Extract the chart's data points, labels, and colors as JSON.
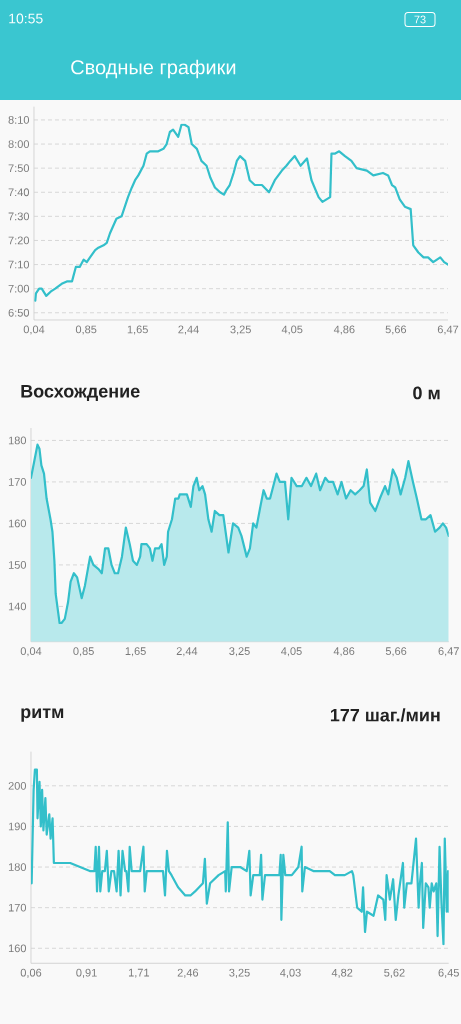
{
  "chart_data": [
    {
      "type": "line",
      "title": "Сводные графики",
      "annotations": [
        "10:55",
        "73"
      ],
      "color": "#33bfca",
      "grid": "y",
      "xlim": [
        0.04,
        6.47
      ],
      "xticks": [
        {
          "value": 0.04,
          "label": "0,04"
        },
        {
          "value": 0.85,
          "label": "0,85"
        },
        {
          "value": 1.65,
          "label": "1,65"
        },
        {
          "value": 2.44,
          "label": "2,44"
        },
        {
          "value": 3.25,
          "label": "3,25"
        },
        {
          "value": 4.05,
          "label": "4,05"
        },
        {
          "value": 4.86,
          "label": "4,86"
        },
        {
          "value": 5.66,
          "label": "5,66"
        },
        {
          "value": 6.47,
          "label": "6,47"
        }
      ],
      "ylim": [
        407,
        495.5
      ],
      "yticks": [
        {
          "value": 410,
          "label": "6:50"
        },
        {
          "value": 420,
          "label": "7:00"
        },
        {
          "value": 430,
          "label": "7:10"
        },
        {
          "value": 440,
          "label": "7:20"
        },
        {
          "value": 450,
          "label": "7:30"
        },
        {
          "value": 460,
          "label": "7:40"
        },
        {
          "value": 470,
          "label": "7:50"
        },
        {
          "value": 480,
          "label": "8:00"
        },
        {
          "value": 490,
          "label": "8:10"
        }
      ],
      "x": [
        0.06,
        0.07,
        0.12,
        0.16,
        0.23,
        0.31,
        0.37,
        0.42,
        0.47,
        0.55,
        0.63,
        0.65,
        0.69,
        0.75,
        0.81,
        0.86,
        0.91,
        0.99,
        1.04,
        1.12,
        1.17,
        1.22,
        1.27,
        1.32,
        1.4,
        1.45,
        1.5,
        1.56,
        1.61,
        1.66,
        1.74,
        1.79,
        1.84,
        1.89,
        1.97,
        2.05,
        2.1,
        2.15,
        2.2,
        2.28,
        2.33,
        2.38,
        2.44,
        2.49,
        2.57,
        2.64,
        2.72,
        2.78,
        2.85,
        2.93,
        2.99,
        3.03,
        3.08,
        3.14,
        3.19,
        3.24,
        3.32,
        3.39,
        3.47,
        3.58,
        3.69,
        3.78,
        3.89,
        3.96,
        4.02,
        4.09,
        4.18,
        4.28,
        4.35,
        4.46,
        4.52,
        4.64,
        4.66,
        4.71,
        4.78,
        4.87,
        4.97,
        5.05,
        5.21,
        5.31,
        5.46,
        5.54,
        5.6,
        5.65,
        5.72,
        5.8,
        5.89,
        5.93,
        6.01,
        6.09,
        6.16,
        6.24,
        6.35,
        6.41,
        6.47
      ],
      "values": [
        415,
        418,
        420,
        420,
        417,
        419,
        420,
        421,
        422,
        423,
        423,
        425,
        429,
        429,
        432,
        431,
        433,
        436,
        437,
        438,
        439,
        443,
        446,
        449,
        450,
        454,
        458,
        462,
        465,
        467,
        471,
        476,
        477,
        477,
        477,
        478,
        480,
        485,
        486,
        483,
        488,
        488,
        487,
        480,
        478,
        473,
        471,
        466,
        462,
        460,
        459,
        461,
        463,
        468,
        473,
        475,
        473,
        465,
        463,
        463,
        460,
        465,
        469,
        471,
        473,
        475,
        471,
        474,
        465,
        458,
        456,
        458,
        476,
        476,
        477,
        475,
        473,
        470,
        469,
        467,
        468,
        467,
        463,
        462,
        457,
        454,
        453,
        438,
        435,
        433,
        433,
        431,
        433,
        431,
        430
      ]
    },
    {
      "type": "area",
      "title": "Восхождение",
      "subtitle": "0 м",
      "color": "#33bfca",
      "grid": "y",
      "xlim": [
        0.04,
        6.47
      ],
      "xticks": [
        {
          "value": 0.04,
          "label": "0,04"
        },
        {
          "value": 0.85,
          "label": "0,85"
        },
        {
          "value": 1.65,
          "label": "1,65"
        },
        {
          "value": 2.44,
          "label": "2,44"
        },
        {
          "value": 3.25,
          "label": "3,25"
        },
        {
          "value": 4.05,
          "label": "4,05"
        },
        {
          "value": 4.86,
          "label": "4,86"
        },
        {
          "value": 5.66,
          "label": "5,66"
        },
        {
          "value": 6.47,
          "label": "6,47"
        }
      ],
      "ylim": [
        131.5,
        183
      ],
      "yticks": [
        140,
        150,
        160,
        170,
        180
      ],
      "x": [
        0.04,
        0.09,
        0.14,
        0.17,
        0.2,
        0.24,
        0.28,
        0.34,
        0.37,
        0.4,
        0.42,
        0.48,
        0.51,
        0.56,
        0.61,
        0.65,
        0.7,
        0.75,
        0.82,
        0.87,
        0.95,
        1.0,
        1.08,
        1.13,
        1.18,
        1.23,
        1.28,
        1.33,
        1.38,
        1.44,
        1.5,
        1.56,
        1.61,
        1.67,
        1.72,
        1.74,
        1.82,
        1.87,
        1.91,
        1.95,
        2.01,
        2.05,
        2.09,
        2.13,
        2.15,
        2.21,
        2.26,
        2.31,
        2.33,
        2.38,
        2.44,
        2.5,
        2.54,
        2.59,
        2.63,
        2.68,
        2.72,
        2.77,
        2.82,
        2.87,
        2.94,
        3.0,
        3.08,
        3.15,
        3.23,
        3.28,
        3.36,
        3.41,
        3.46,
        3.51,
        3.57,
        3.62,
        3.67,
        3.72,
        3.77,
        3.82,
        3.87,
        3.95,
        4.0,
        4.05,
        4.13,
        4.21,
        4.28,
        4.35,
        4.43,
        4.49,
        4.57,
        4.62,
        4.69,
        4.76,
        4.82,
        4.89,
        4.96,
        5.03,
        5.1,
        5.16,
        5.21,
        5.26,
        5.34,
        5.41,
        5.49,
        5.54,
        5.61,
        5.67,
        5.73,
        5.8,
        5.85,
        5.92,
        5.98,
        6.05,
        6.12,
        6.19,
        6.26,
        6.33,
        6.38,
        6.43,
        6.47
      ],
      "values": [
        171,
        175,
        179,
        178,
        174,
        172,
        166,
        161,
        158,
        151,
        143,
        136,
        136,
        137,
        141,
        146,
        148,
        147,
        142,
        145,
        152,
        150,
        149,
        148,
        154,
        154,
        150,
        148,
        148,
        152,
        159,
        155,
        151,
        150,
        152,
        155,
        155,
        154,
        151,
        154,
        154,
        155,
        150,
        152,
        158,
        161,
        166,
        166,
        167,
        167,
        167,
        164,
        169,
        171,
        168,
        169,
        167,
        161,
        158,
        163,
        162,
        162,
        153,
        160,
        159,
        157,
        152,
        154,
        160,
        159,
        164,
        168,
        166,
        166,
        169,
        172,
        170,
        170,
        161,
        171,
        169,
        169,
        171,
        169,
        172,
        168,
        171,
        170,
        170,
        167,
        170,
        166,
        168,
        167,
        168,
        169,
        173,
        165,
        163,
        166,
        169,
        167,
        173,
        171,
        167,
        171,
        175,
        170,
        166,
        161,
        161,
        162,
        158,
        159,
        160,
        159,
        157
      ]
    },
    {
      "type": "line",
      "title": "ритм",
      "subtitle": "177 шаг./мин",
      "color": "#33bfca",
      "grid": "y",
      "xlim": [
        0.06,
        6.45
      ],
      "xticks": [
        {
          "value": 0.06,
          "label": "0,06"
        },
        {
          "value": 0.91,
          "label": "0,91"
        },
        {
          "value": 1.71,
          "label": "1,71"
        },
        {
          "value": 2.46,
          "label": "2,46"
        },
        {
          "value": 3.25,
          "label": "3,25"
        },
        {
          "value": 4.03,
          "label": "4,03"
        },
        {
          "value": 4.82,
          "label": "4,82"
        },
        {
          "value": 5.62,
          "label": "5,62"
        },
        {
          "value": 6.45,
          "label": "6,45"
        }
      ],
      "ylim": [
        156.3,
        208.4
      ],
      "yticks": [
        160,
        170,
        180,
        190,
        200
      ],
      "x": [
        0.07,
        0.1,
        0.12,
        0.15,
        0.16,
        0.19,
        0.21,
        0.23,
        0.25,
        0.28,
        0.3,
        0.34,
        0.36,
        0.39,
        0.41,
        0.45,
        0.5,
        0.66,
        0.81,
        0.96,
        1.03,
        1.05,
        1.07,
        1.1,
        1.12,
        1.15,
        1.19,
        1.22,
        1.25,
        1.29,
        1.33,
        1.37,
        1.4,
        1.43,
        1.46,
        1.5,
        1.52,
        1.55,
        1.57,
        1.6,
        1.73,
        1.78,
        1.8,
        1.83,
        1.98,
        2.08,
        2.11,
        2.14,
        2.17,
        2.21,
        2.31,
        2.42,
        2.5,
        2.57,
        2.69,
        2.72,
        2.75,
        2.8,
        2.93,
        3.03,
        3.04,
        3.07,
        3.09,
        3.13,
        3.26,
        3.36,
        3.4,
        3.42,
        3.46,
        3.56,
        3.58,
        3.6,
        3.64,
        3.76,
        3.86,
        3.88,
        3.89,
        3.92,
        3.95,
        4.05,
        4.15,
        4.2,
        4.21,
        4.25,
        4.38,
        4.53,
        4.63,
        4.71,
        4.86,
        4.97,
        4.99,
        5.05,
        5.12,
        5.14,
        5.17,
        5.2,
        5.3,
        5.37,
        5.45,
        5.48,
        5.5,
        5.55,
        5.6,
        5.64,
        5.68,
        5.75,
        5.77,
        5.81,
        5.88,
        5.95,
        5.99,
        6.01,
        6.04,
        6.06,
        6.1,
        6.14,
        6.16,
        6.19,
        6.22,
        6.26,
        6.28,
        6.31,
        6.34,
        6.37,
        6.39,
        6.42,
        6.44,
        6.45
      ],
      "values": [
        176,
        199,
        204,
        204,
        192,
        201,
        190,
        199,
        189,
        197,
        188,
        193,
        187,
        192,
        181,
        181,
        181,
        181,
        180,
        179,
        179,
        185,
        174,
        185,
        174,
        179,
        179,
        184,
        174,
        179,
        179,
        174,
        184,
        173,
        184,
        179,
        179,
        174,
        185,
        179,
        179,
        185,
        174,
        179,
        179,
        179,
        173,
        184,
        179,
        178,
        175,
        173,
        173,
        174,
        176,
        182,
        171,
        176,
        178,
        179,
        174,
        191,
        174,
        180,
        180,
        179,
        184,
        173,
        178,
        178,
        183,
        172,
        178,
        178,
        178,
        183,
        167,
        183,
        178,
        178,
        180,
        185,
        174,
        180,
        179,
        179,
        179,
        178,
        178,
        179,
        178,
        170,
        169,
        175,
        164,
        169,
        168,
        173,
        172,
        167,
        178,
        172,
        177,
        167,
        173,
        181,
        170,
        176,
        176,
        187,
        170,
        176,
        181,
        165,
        176,
        175,
        170,
        176,
        174,
        176,
        163,
        185,
        171,
        161,
        187,
        169,
        179,
        169
      ]
    }
  ]
}
